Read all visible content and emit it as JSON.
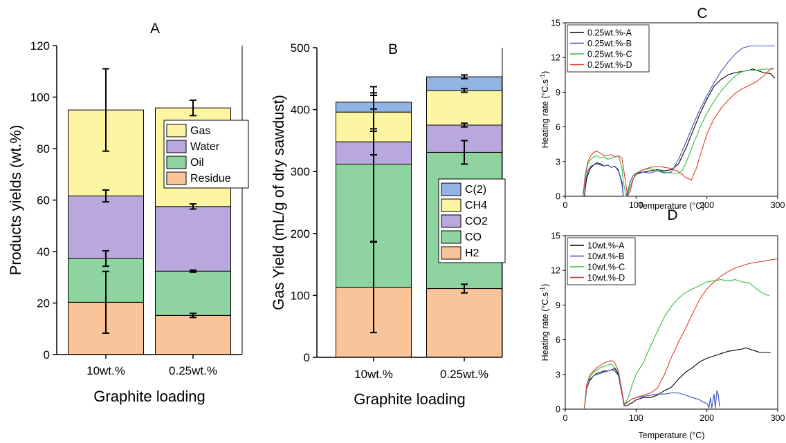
{
  "chart_data": [
    {
      "panel": "A",
      "type": "bar",
      "stacked": true,
      "xlabel": "Graphite loading",
      "ylabel": "Products yields (wt.%)",
      "categories": [
        "10wt.%",
        "0.25wt.%"
      ],
      "ylim": [
        0,
        120
      ],
      "yticks": [
        "0",
        "20",
        "40",
        "60",
        "80",
        "100",
        "120"
      ],
      "series": [
        {
          "name": "Residue",
          "values": [
            20.3,
            15.2
          ],
          "err": [
            12.0,
            0.8
          ],
          "color": "#f9c49a"
        },
        {
          "name": "Oil",
          "values": [
            17.0,
            17.2
          ],
          "err": [
            3.0,
            0.4
          ],
          "color": "#8fd3a1"
        },
        {
          "name": "Water",
          "values": [
            24.3,
            25.1
          ],
          "err": [
            2.3,
            1.0
          ],
          "color": "#b9a8dd"
        },
        {
          "name": "Gas",
          "values": [
            33.4,
            38.3
          ],
          "err": [
            16.0,
            3.0
          ],
          "color": "#fbf5a4"
        }
      ],
      "legend_order": [
        "Gas",
        "Water",
        "Oil",
        "Residue"
      ],
      "legend_position": "right-middle"
    },
    {
      "panel": "B",
      "type": "bar",
      "stacked": true,
      "xlabel": "Graphite loading",
      "ylabel": "Gas Yield (mL/g of dry sawdust)",
      "categories": [
        "10wt.%",
        "0.25wt.%"
      ],
      "ylim": [
        0,
        500
      ],
      "yticks": [
        "0",
        "100",
        "200",
        "300",
        "400",
        "500"
      ],
      "series": [
        {
          "name": "H2",
          "values": [
            113,
            111
          ],
          "err": [
            73,
            7
          ],
          "color": "#f9c49a"
        },
        {
          "name": "CO",
          "values": [
            199,
            220
          ],
          "err": [
            125,
            19
          ],
          "color": "#8fd3a1"
        },
        {
          "name": "CO2",
          "values": [
            36,
            44
          ],
          "err": [
            21,
            3
          ],
          "color": "#b9a8dd"
        },
        {
          "name": "CH4",
          "values": [
            48,
            56
          ],
          "err": [
            31,
            3
          ],
          "color": "#fbf5a4"
        },
        {
          "name": "C(2)",
          "values": [
            16,
            22
          ],
          "err": [
            11,
            3
          ],
          "color": "#92b4e3"
        }
      ],
      "legend_order": [
        "C(2)",
        "CH4",
        "CO2",
        "CO",
        "H2"
      ],
      "legend_position": "right-middle"
    },
    {
      "panel": "C",
      "type": "line",
      "xlabel": "Temperature (°C)",
      "ylabel": "Heating rate (°C.s⁻¹)",
      "xlim": [
        0,
        300
      ],
      "ylim": [
        0,
        15
      ],
      "xticks": [
        "0",
        "100",
        "200",
        "300"
      ],
      "yticks": [
        "0",
        "3",
        "6",
        "9",
        "12",
        "15"
      ],
      "legend_position": "top-left",
      "series": [
        {
          "name": "0.25wt.%-A",
          "color": "#000000",
          "x": [
            27,
            30,
            35,
            40,
            45,
            50,
            55,
            60,
            65,
            70,
            75,
            80,
            82,
            85,
            87,
            90,
            95,
            100,
            110,
            120,
            130,
            140,
            150,
            160,
            170,
            180,
            190,
            200,
            210,
            220,
            230,
            240,
            250,
            260,
            265,
            270,
            280,
            290,
            296
          ],
          "y": [
            0,
            1.5,
            2.4,
            2.7,
            2.9,
            2.8,
            2.6,
            2.7,
            2.5,
            2.6,
            2.2,
            1.2,
            0,
            0,
            0,
            0.5,
            1.4,
            1.9,
            2.1,
            2.2,
            2.3,
            2.2,
            2.3,
            2.8,
            4.1,
            5.6,
            7.1,
            8.4,
            9.5,
            10.1,
            10.5,
            10.7,
            10.8,
            10.9,
            11.0,
            10.9,
            10.7,
            10.6,
            10.2
          ]
        },
        {
          "name": "0.25wt.%-B",
          "color": "#3a4fc2",
          "x": [
            25,
            28,
            32,
            36,
            40,
            45,
            50,
            55,
            60,
            65,
            70,
            75,
            80,
            82,
            85,
            88,
            92,
            96,
            100,
            110,
            120,
            130,
            140,
            150,
            160,
            170,
            180,
            190,
            200,
            210,
            220,
            230,
            240,
            250,
            260,
            270,
            280,
            290,
            296
          ],
          "y": [
            0,
            1.3,
            2.2,
            2.6,
            2.7,
            2.8,
            2.7,
            2.6,
            2.7,
            2.5,
            2.6,
            2.3,
            1.0,
            0,
            0,
            0.4,
            1.3,
            1.8,
            2.0,
            2.1,
            2.0,
            2.2,
            2.0,
            2.1,
            3.2,
            4.6,
            6.1,
            7.5,
            8.7,
            9.8,
            10.8,
            11.6,
            12.3,
            12.8,
            13.0,
            13.0,
            13.0,
            13.0,
            13.0
          ]
        },
        {
          "name": "0.25wt.%-C",
          "color": "#2fbf3a",
          "x": [
            25,
            28,
            32,
            36,
            40,
            45,
            50,
            55,
            60,
            65,
            70,
            75,
            80,
            82,
            86,
            90,
            95,
            100,
            110,
            120,
            130,
            140,
            150,
            160,
            165,
            170,
            175,
            180,
            190,
            200,
            210,
            220,
            230,
            240,
            250,
            260,
            270,
            280,
            290,
            294
          ],
          "y": [
            0,
            1.6,
            2.8,
            3.2,
            3.4,
            3.5,
            3.3,
            3.4,
            3.2,
            3.3,
            3.4,
            3.5,
            2.5,
            1.2,
            0,
            0.5,
            1.4,
            2.0,
            2.3,
            2.4,
            2.2,
            2.1,
            2.0,
            2.0,
            2.2,
            2.8,
            3.6,
            4.4,
            5.9,
            7.2,
            8.2,
            9.1,
            9.8,
            10.4,
            10.8,
            10.9,
            10.9,
            11.0,
            11.0,
            11.0
          ]
        },
        {
          "name": "0.25wt.%-D",
          "color": "#e33a2c",
          "x": [
            25,
            28,
            32,
            36,
            40,
            45,
            50,
            55,
            60,
            65,
            70,
            75,
            80,
            82,
            88,
            92,
            96,
            100,
            110,
            120,
            130,
            140,
            150,
            160,
            165,
            170,
            175,
            178,
            185,
            190,
            200,
            210,
            220,
            230,
            240,
            250,
            260,
            270,
            280,
            290,
            294
          ],
          "y": [
            0,
            1.8,
            3.0,
            3.5,
            3.8,
            3.9,
            3.7,
            3.5,
            3.5,
            3.6,
            3.4,
            3.5,
            3.3,
            2.5,
            0,
            0.5,
            1.5,
            1.9,
            2.3,
            2.5,
            2.6,
            2.5,
            2.4,
            2.1,
            1.9,
            1.6,
            1.5,
            1.4,
            2.4,
            3.4,
            5.4,
            6.7,
            7.6,
            8.3,
            8.9,
            9.3,
            9.6,
            9.9,
            10.4,
            11.0,
            11.1
          ]
        }
      ]
    },
    {
      "panel": "D",
      "type": "line",
      "xlabel": "Temperature (°C)",
      "ylabel": "Heating rate (°C.s⁻¹)",
      "xlim": [
        0,
        300
      ],
      "ylim": [
        0,
        15
      ],
      "xticks": [
        "0",
        "100",
        "200",
        "300"
      ],
      "yticks": [
        "0",
        "3",
        "6",
        "9",
        "12",
        "15"
      ],
      "legend_position": "top-left",
      "series": [
        {
          "name": "10wt.%-A",
          "color": "#000000",
          "x": [
            27,
            30,
            35,
            40,
            45,
            50,
            55,
            60,
            65,
            70,
            75,
            80,
            83,
            85,
            88,
            92,
            96,
            100,
            110,
            120,
            130,
            140,
            150,
            160,
            170,
            180,
            190,
            200,
            210,
            220,
            230,
            240,
            250,
            255,
            260,
            265,
            270,
            275,
            280,
            285,
            290
          ],
          "y": [
            0,
            1.8,
            2.5,
            2.9,
            3.1,
            3.2,
            3.3,
            3.3,
            3.4,
            3.5,
            3.0,
            1.5,
            0.3,
            0.3,
            0.3,
            0.5,
            0.6,
            0.8,
            1.0,
            1.0,
            1.2,
            1.6,
            1.9,
            2.6,
            3.2,
            3.6,
            4.1,
            4.4,
            4.6,
            4.8,
            5.0,
            5.1,
            5.2,
            5.3,
            5.2,
            5.1,
            5.0,
            4.9,
            4.9,
            4.9,
            4.9
          ]
        },
        {
          "name": "10wt.%-B",
          "color": "#3a4fc2",
          "x": [
            27,
            30,
            35,
            40,
            45,
            50,
            55,
            60,
            65,
            70,
            75,
            80,
            83,
            85,
            90,
            95,
            100,
            110,
            120,
            130,
            140,
            150,
            160,
            170,
            180,
            190,
            195,
            200,
            203,
            205,
            207,
            210,
            212,
            214,
            216,
            218
          ],
          "y": [
            0,
            1.7,
            2.6,
            2.9,
            3.0,
            3.1,
            3.2,
            3.3,
            3.4,
            3.3,
            2.9,
            1.3,
            0.3,
            0.5,
            0.7,
            0.9,
            1.0,
            1.1,
            1.2,
            1.3,
            1.3,
            1.4,
            1.4,
            1.2,
            1.0,
            0.8,
            0.6,
            0.5,
            0.1,
            1.0,
            0.1,
            1.3,
            0.1,
            1.6,
            1.3,
            0.2
          ]
        },
        {
          "name": "10wt.%-C",
          "color": "#2fbf3a",
          "x": [
            27,
            30,
            35,
            40,
            45,
            50,
            55,
            60,
            65,
            70,
            75,
            80,
            83,
            86,
            90,
            95,
            100,
            110,
            120,
            130,
            140,
            150,
            160,
            170,
            180,
            190,
            200,
            210,
            220,
            230,
            240,
            250,
            260,
            270,
            280,
            288
          ],
          "y": [
            0,
            2.0,
            2.8,
            3.2,
            3.4,
            3.6,
            3.7,
            3.8,
            3.9,
            3.6,
            3.2,
            1.6,
            0.5,
            0.6,
            1.2,
            2.2,
            3.0,
            4.0,
            5.4,
            6.7,
            8.0,
            8.9,
            9.6,
            10.1,
            10.4,
            10.7,
            11.0,
            11.1,
            11.2,
            11.1,
            11.2,
            11.0,
            10.9,
            10.4,
            10.0,
            9.8
          ]
        },
        {
          "name": "10wt.%-D",
          "color": "#e33a2c",
          "x": [
            27,
            30,
            35,
            40,
            45,
            50,
            55,
            60,
            65,
            70,
            75,
            80,
            83,
            86,
            90,
            95,
            100,
            110,
            120,
            130,
            140,
            150,
            160,
            170,
            180,
            190,
            200,
            210,
            220,
            230,
            240,
            250,
            260,
            270,
            280,
            290,
            300
          ],
          "y": [
            0,
            2.1,
            3.0,
            3.3,
            3.6,
            3.8,
            4.0,
            4.1,
            4.2,
            4.0,
            3.3,
            1.6,
            0.4,
            0.5,
            0.7,
            0.9,
            1.0,
            1.2,
            1.4,
            1.8,
            3.0,
            4.5,
            5.8,
            7.0,
            8.3,
            9.5,
            10.4,
            11.0,
            11.5,
            11.9,
            12.2,
            12.4,
            12.6,
            12.7,
            12.8,
            12.9,
            13.0
          ]
        }
      ]
    }
  ]
}
